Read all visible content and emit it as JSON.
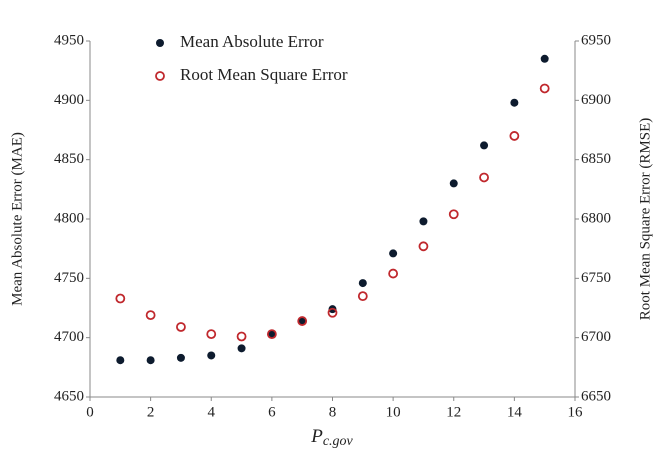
{
  "chart_data": {
    "type": "scatter",
    "x": [
      1,
      2,
      3,
      4,
      5,
      6,
      7,
      8,
      9,
      10,
      11,
      12,
      13,
      14,
      15
    ],
    "xlabel": {
      "main": "P",
      "sub": "c.gov"
    },
    "ylabel": "Mean Absolute Error (MAE)",
    "y2label": "Root Mean Square Error (RMSE)",
    "series": [
      {
        "name": "Mean Absolute Error",
        "color": "#0d1b2e",
        "marker": "filled",
        "axis": "y",
        "values": [
          4681,
          4681,
          4683,
          4685,
          4691,
          4703,
          4714,
          4724,
          4746,
          4771,
          4798,
          4830,
          4862,
          4898,
          4935
        ]
      },
      {
        "name": "Root Mean Square Error",
        "color": "#c0282d",
        "marker": "hollow",
        "axis": "y2",
        "values": [
          6733,
          6719,
          6709,
          6703,
          6701,
          6703,
          6714,
          6721,
          6735,
          6754,
          6777,
          6804,
          6835,
          6870,
          6910
        ]
      }
    ],
    "xlim": [
      0,
      16
    ],
    "xticks": [
      0,
      2,
      4,
      6,
      8,
      10,
      12,
      14,
      16
    ],
    "ylim": [
      4650,
      4950
    ],
    "yticks": [
      4650,
      4700,
      4750,
      4800,
      4850,
      4900,
      4950
    ],
    "y2lim": [
      6650,
      6950
    ],
    "y2ticks": [
      6650,
      6700,
      6750,
      6800,
      6850,
      6900,
      6950
    ],
    "legend": "top-left"
  }
}
